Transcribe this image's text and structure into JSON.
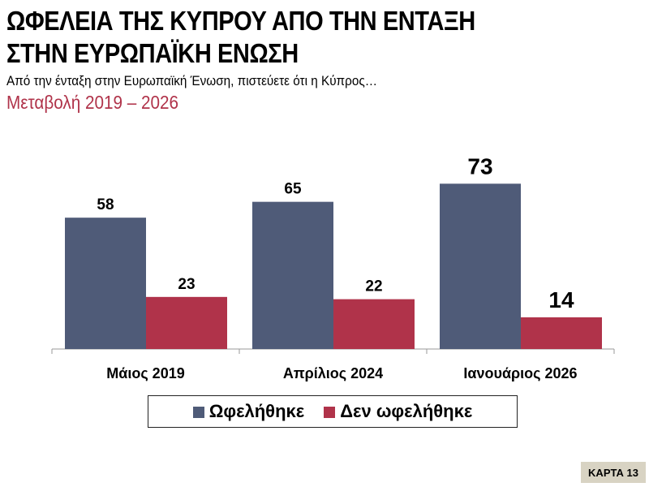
{
  "header": {
    "title_line1": "ΩΦΕΛΕΙΑ ΤΗΣ ΚΥΠΡΟΥ ΑΠΟ ΤΗΝ ΕΝΤΑΞΗ",
    "title_line2": "ΣΤΗΝ ΕΥΡΩΠΑΪΚΗ ΕΝΩΣΗ",
    "question": "Από την ένταξη στην Ευρωπαϊκή Ένωση, πιστεύετε ότι η Κύπρος…",
    "subtitle": "Μεταβολή 2019 – 2026"
  },
  "chart_data": {
    "type": "bar",
    "categories": [
      "Μάιος 2019",
      "Απρίλιος 2024",
      "Ιανουάριος 2026"
    ],
    "series": [
      {
        "name": "Ωφελήθηκε",
        "values": [
          58,
          65,
          73
        ],
        "color": "#4f5b78"
      },
      {
        "name": "Δεν ωφελήθηκε",
        "values": [
          23,
          22,
          14
        ],
        "color": "#b0334a"
      }
    ],
    "ylim": [
      0,
      80
    ],
    "grid": false,
    "legend_position": "bottom"
  },
  "badge": "ΚΑΡΤΑ 13"
}
